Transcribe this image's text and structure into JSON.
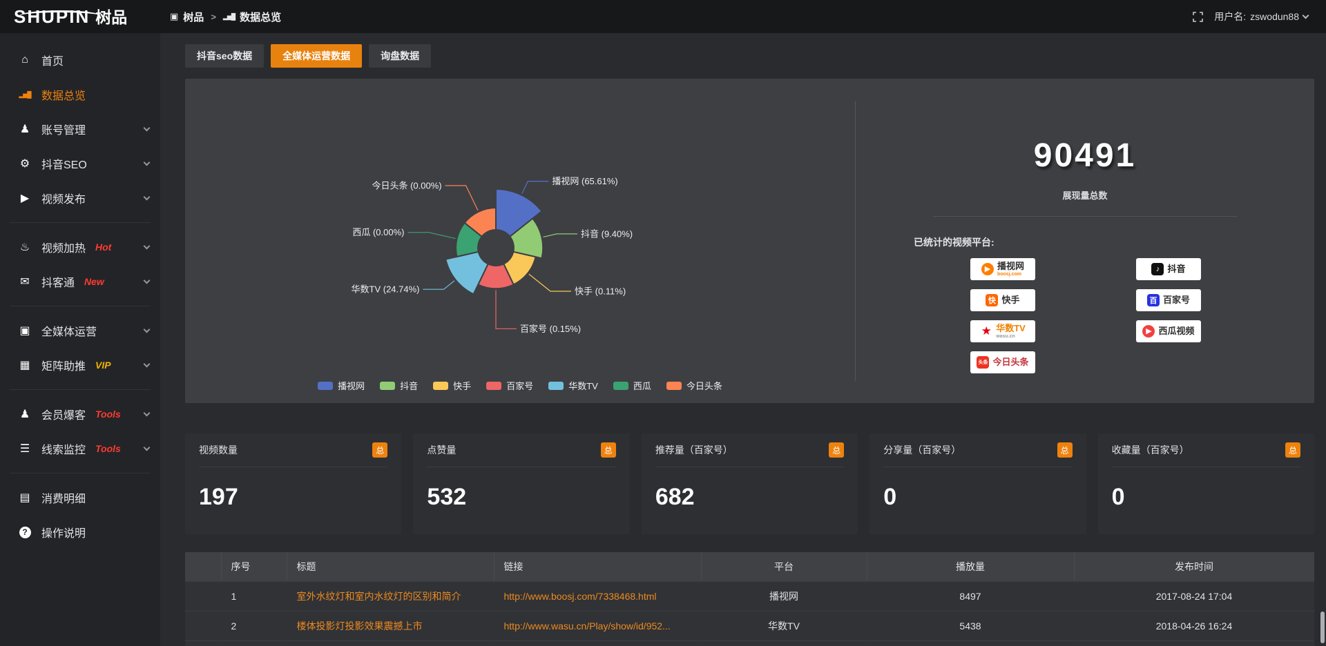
{
  "header": {
    "logo_text": "SHUPIN",
    "logo_suffix": "树品",
    "breadcrumb": [
      {
        "icon": "screen",
        "label": "树品"
      },
      {
        "icon": "bar-chart",
        "label": "数据总览"
      }
    ],
    "breadcrumb_separator": ">",
    "username_label": "用户名: ",
    "username": "zswodun88"
  },
  "sidebar": {
    "items": [
      {
        "icon": "home",
        "label": "首页",
        "active": false,
        "chevron": false
      },
      {
        "icon": "bar-chart",
        "label": "数据总览",
        "active": true,
        "chevron": false
      },
      {
        "icon": "user",
        "label": "账号管理",
        "chevron": true
      },
      {
        "icon": "gear",
        "label": "抖音SEO",
        "chevron": true
      },
      {
        "icon": "publish",
        "label": "视频发布",
        "chevron": true,
        "divider_after": true
      },
      {
        "icon": "heat",
        "label": "视频加热",
        "badge": "Hot",
        "badge_color": "#ff3b30",
        "chevron": true
      },
      {
        "icon": "chat",
        "label": "抖客通",
        "badge": "New",
        "badge_color": "#ff3b30",
        "chevron": true,
        "divider_after": true
      },
      {
        "icon": "monitor",
        "label": "全媒体运营",
        "chevron": true
      },
      {
        "icon": "grid",
        "label": "矩阵助推",
        "badge": "VIP",
        "badge_color": "#edb200",
        "chevron": true,
        "divider_after": true
      },
      {
        "icon": "user",
        "label": "会员爆客",
        "badge": "Tools",
        "badge_color": "#ff3b30",
        "chevron": true
      },
      {
        "icon": "sliders",
        "label": "线索监控",
        "badge": "Tools",
        "badge_color": "#ff3b30",
        "chevron": true,
        "divider_after": true
      },
      {
        "icon": "wallet",
        "label": "消费明细",
        "chevron": false
      },
      {
        "icon": "help",
        "label": "操作说明",
        "chevron": false
      }
    ]
  },
  "tabs": [
    {
      "label": "抖音seo数据",
      "active": false
    },
    {
      "label": "全媒体运营数据",
      "active": true
    },
    {
      "label": "询盘数据",
      "active": false
    }
  ],
  "chart_data": {
    "type": "pie",
    "variant": "nightingale-rose",
    "title": "",
    "categories": [
      "播视网",
      "抖音",
      "快手",
      "百家号",
      "华数TV",
      "西瓜",
      "今日头条"
    ],
    "values": [
      65.61,
      9.4,
      0.11,
      0.15,
      24.74,
      0.0,
      0.0
    ],
    "unit": "%",
    "labels": [
      "播视网 (65.61%)",
      "抖音 (9.40%)",
      "快手 (0.11%)",
      "百家号 (0.15%)",
      "华数TV (24.74%)",
      "西瓜 (0.00%)",
      "今日头条 (0.00%)"
    ],
    "colors": [
      "#5470c6",
      "#91cc75",
      "#fac858",
      "#ee6666",
      "#73c0de",
      "#3ba272",
      "#fc8452"
    ],
    "legend": [
      "播视网",
      "抖音",
      "快手",
      "百家号",
      "华数TV",
      "西瓜",
      "今日头条"
    ],
    "legend_position": "bottom"
  },
  "summary": {
    "total_value": "90491",
    "total_label": "展现量总数",
    "platforms_title": "已统计的视频平台:",
    "platform_badges": [
      {
        "name": "播视网",
        "sub": "boosj.com",
        "sub_color": "#ff7e00",
        "logo_type": "play-circle",
        "logo_glyph": "▶",
        "logo_color": "#ff7e00",
        "name_color": "#333333"
      },
      {
        "name": "抖音",
        "sub": "",
        "logo_type": "square",
        "logo_glyph": "♪",
        "logo_color": "#111111",
        "name_color": "#222222"
      },
      {
        "name": "快手",
        "sub": "",
        "logo_type": "square",
        "logo_glyph": "快",
        "logo_color": "#ff6600",
        "name_color": "#333333"
      },
      {
        "name": "百家号",
        "sub": "",
        "logo_type": "square",
        "logo_glyph": "百",
        "logo_color": "#2932e1",
        "name_color": "#333333"
      },
      {
        "name": "华数TV",
        "sub": "wasu.cn",
        "sub_color": "#999999",
        "logo_type": "star",
        "logo_glyph": "★",
        "logo_color": "#e60012",
        "name_color": "#f08300"
      },
      {
        "name": "西瓜视频",
        "sub": "",
        "logo_type": "play-circle",
        "logo_glyph": "▶",
        "logo_color": "#f04142",
        "name_color": "#333333"
      },
      {
        "name": "今日头条",
        "sub": "",
        "logo_type": "square",
        "logo_glyph": "头条",
        "logo_color": "#ed3321",
        "name_color": "#c5343c"
      }
    ]
  },
  "stat_cards": [
    {
      "label": "视频数量",
      "badge": "总",
      "value": "197"
    },
    {
      "label": "点赞量",
      "badge": "总",
      "value": "532"
    },
    {
      "label": "推荐量（百家号）",
      "badge": "总",
      "value": "682"
    },
    {
      "label": "分享量（百家号）",
      "badge": "总",
      "value": "0"
    },
    {
      "label": "收藏量（百家号）",
      "badge": "总",
      "value": "0"
    }
  ],
  "table": {
    "columns": [
      "序号",
      "标题",
      "链接",
      "平台",
      "播放量",
      "发布时间"
    ],
    "rows": [
      {
        "index": "1",
        "title": "室外水纹灯和室内水纹灯的区别和简介",
        "link": "http://www.boosj.com/7338468.html",
        "platform": "播视网",
        "plays": "8497",
        "published": "2017-08-24 17:04"
      },
      {
        "index": "2",
        "title": "楼体投影灯投影效果震撼上市",
        "link": "http://www.wasu.cn/Play/show/id/952...",
        "platform": "华数TV",
        "plays": "5438",
        "published": "2018-04-26 16:24"
      }
    ]
  },
  "colors": {
    "accent_orange": "#ee820e",
    "hot_new_tools_red": "#ff3b30",
    "vip_gold": "#edb200",
    "link_orange": "#ee8a1e",
    "panel_bg": "#3e3f43",
    "card_bg": "#2d2f33"
  }
}
